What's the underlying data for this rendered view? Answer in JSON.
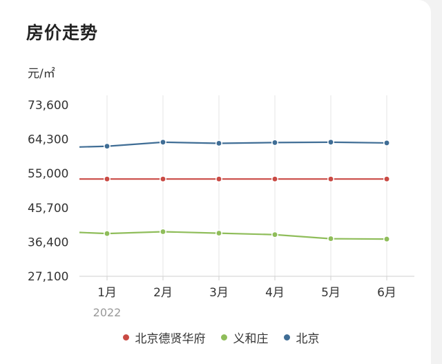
{
  "page": {
    "title": "房价走势",
    "unit": "元/㎡"
  },
  "chart_data": {
    "type": "line",
    "title": "房价走势",
    "ylabel": "元/㎡",
    "xlabel": "",
    "categories": [
      "1月",
      "2月",
      "3月",
      "4月",
      "5月",
      "6月"
    ],
    "year_label": "2022",
    "ylim": [
      27100,
      73600
    ],
    "yticks": [
      "73,600",
      "64,300",
      "55,000",
      "45,700",
      "36,400",
      "27,100"
    ],
    "ytick_values": [
      73600,
      64300,
      55000,
      45700,
      36400,
      27100
    ],
    "grid": true,
    "legend_position": "bottom",
    "series": [
      {
        "name": "北京德贤华府",
        "color": "#c94a44",
        "start": 53500,
        "values": [
          53500,
          53500,
          53500,
          53500,
          53500,
          53500
        ]
      },
      {
        "name": "义和庄",
        "color": "#8fbd5a",
        "start": 39000,
        "values": [
          38700,
          39200,
          38800,
          38400,
          37300,
          37200
        ]
      },
      {
        "name": "北京",
        "color": "#3f6d95",
        "start": 62200,
        "values": [
          62400,
          63500,
          63200,
          63400,
          63500,
          63300
        ]
      }
    ]
  }
}
